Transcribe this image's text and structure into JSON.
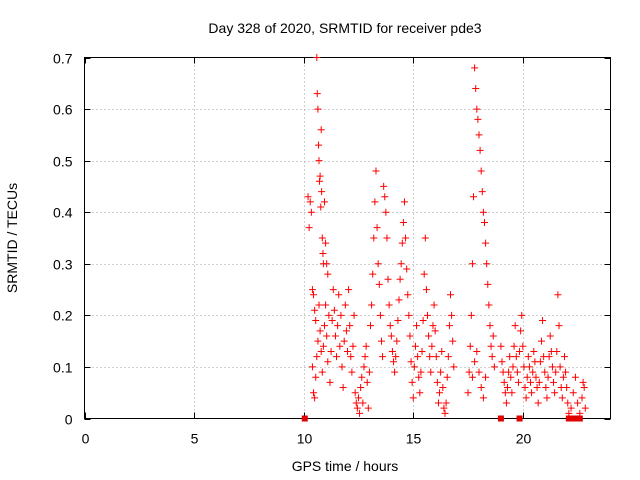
{
  "chart_data": {
    "type": "scatter",
    "title": "Day 328 of 2020, SRMTID for receiver pde3",
    "xlabel": "GPS time / hours",
    "ylabel": "SRMTID / TECUs",
    "xlim": [
      0,
      24
    ],
    "ylim": [
      0,
      0.7
    ],
    "xticks": [
      0,
      5,
      10,
      15,
      20
    ],
    "xtick_labels": [
      "0",
      "5",
      "10",
      "15",
      "20"
    ],
    "yticks": [
      0,
      0.1,
      0.2,
      0.3,
      0.4,
      0.5,
      0.6,
      0.7
    ],
    "ytick_labels": [
      "0",
      "0.1",
      "0.2",
      "0.3",
      "0.4",
      "0.5",
      "0.6",
      "0.7"
    ],
    "grid": true,
    "marker": "+",
    "marker_color": "#ff0000",
    "point_color": "#e00000",
    "series": [
      {
        "name": "SRMTID",
        "points": [
          [
            10.2,
            0.43
          ],
          [
            10.25,
            0.37
          ],
          [
            10.3,
            0.42
          ],
          [
            10.35,
            0.4
          ],
          [
            10.4,
            0.25
          ],
          [
            10.45,
            0.24
          ],
          [
            10.5,
            0.21
          ],
          [
            10.55,
            0.19
          ],
          [
            10.6,
            0.7
          ],
          [
            10.62,
            0.63
          ],
          [
            10.65,
            0.6
          ],
          [
            10.68,
            0.53
          ],
          [
            10.7,
            0.5
          ],
          [
            10.72,
            0.46
          ],
          [
            10.75,
            0.47
          ],
          [
            10.78,
            0.41
          ],
          [
            10.8,
            0.56
          ],
          [
            10.82,
            0.44
          ],
          [
            10.85,
            0.35
          ],
          [
            10.88,
            0.32
          ],
          [
            10.9,
            0.3
          ],
          [
            10.95,
            0.42
          ],
          [
            11.0,
            0.34
          ],
          [
            11.05,
            0.3
          ],
          [
            11.1,
            0.28
          ],
          [
            11.15,
            0.2
          ],
          [
            10.4,
            0.1
          ],
          [
            10.45,
            0.05
          ],
          [
            10.5,
            0.04
          ],
          [
            10.55,
            0.08
          ],
          [
            10.6,
            0.12
          ],
          [
            10.65,
            0.15
          ],
          [
            10.7,
            0.22
          ],
          [
            10.75,
            0.17
          ],
          [
            10.8,
            0.13
          ],
          [
            10.85,
            0.09
          ],
          [
            10.9,
            0.14
          ],
          [
            10.95,
            0.18
          ],
          [
            11.0,
            0.22
          ],
          [
            11.05,
            0.16
          ],
          [
            11.1,
            0.11
          ],
          [
            11.2,
            0.07
          ],
          [
            11.25,
            0.13
          ],
          [
            11.3,
            0.19
          ],
          [
            11.35,
            0.25
          ],
          [
            11.4,
            0.21
          ],
          [
            11.45,
            0.16
          ],
          [
            11.5,
            0.12
          ],
          [
            11.55,
            0.18
          ],
          [
            11.6,
            0.24
          ],
          [
            11.65,
            0.14
          ],
          [
            11.7,
            0.2
          ],
          [
            11.75,
            0.1
          ],
          [
            11.8,
            0.06
          ],
          [
            11.85,
            0.15
          ],
          [
            11.9,
            0.22
          ],
          [
            11.95,
            0.17
          ],
          [
            12.0,
            0.13
          ],
          [
            12.05,
            0.25
          ],
          [
            12.1,
            0.18
          ],
          [
            12.15,
            0.12
          ],
          [
            12.2,
            0.09
          ],
          [
            12.25,
            0.14
          ],
          [
            12.3,
            0.2
          ],
          [
            12.35,
            0.05
          ],
          [
            12.4,
            0.03
          ],
          [
            12.45,
            0.02
          ],
          [
            12.5,
            0.04
          ],
          [
            12.55,
            0.01
          ],
          [
            12.6,
            0.06
          ],
          [
            12.65,
            0.08
          ],
          [
            12.7,
            0.03
          ],
          [
            12.75,
            0.1
          ],
          [
            12.8,
            0.12
          ],
          [
            12.85,
            0.14
          ],
          [
            12.9,
            0.07
          ],
          [
            12.95,
            0.02
          ],
          [
            13.0,
            0.09
          ],
          [
            13.05,
            0.18
          ],
          [
            13.1,
            0.22
          ],
          [
            13.15,
            0.28
          ],
          [
            13.2,
            0.35
          ],
          [
            13.25,
            0.42
          ],
          [
            13.3,
            0.48
          ],
          [
            13.35,
            0.37
          ],
          [
            13.4,
            0.3
          ],
          [
            13.45,
            0.26
          ],
          [
            13.5,
            0.2
          ],
          [
            13.55,
            0.15
          ],
          [
            13.6,
            0.12
          ],
          [
            13.65,
            0.45
          ],
          [
            13.7,
            0.43
          ],
          [
            13.75,
            0.4
          ],
          [
            13.8,
            0.35
          ],
          [
            13.85,
            0.27
          ],
          [
            13.9,
            0.22
          ],
          [
            13.95,
            0.18
          ],
          [
            14.0,
            0.16
          ],
          [
            14.05,
            0.13
          ],
          [
            14.1,
            0.11
          ],
          [
            14.15,
            0.09
          ],
          [
            14.2,
            0.12
          ],
          [
            14.25,
            0.15
          ],
          [
            14.3,
            0.19
          ],
          [
            14.35,
            0.23
          ],
          [
            14.4,
            0.27
          ],
          [
            14.45,
            0.3
          ],
          [
            14.5,
            0.34
          ],
          [
            14.55,
            0.38
          ],
          [
            14.6,
            0.42
          ],
          [
            14.65,
            0.35
          ],
          [
            14.7,
            0.29
          ],
          [
            14.75,
            0.24
          ],
          [
            14.8,
            0.2
          ],
          [
            14.85,
            0.16
          ],
          [
            14.9,
            0.11
          ],
          [
            14.95,
            0.07
          ],
          [
            15.0,
            0.04
          ],
          [
            15.05,
            0.1
          ],
          [
            15.1,
            0.14
          ],
          [
            15.15,
            0.18
          ],
          [
            15.2,
            0.12
          ],
          [
            15.25,
            0.08
          ],
          [
            15.3,
            0.05
          ],
          [
            15.35,
            0.09
          ],
          [
            15.4,
            0.13
          ],
          [
            15.45,
            0.19
          ],
          [
            15.5,
            0.28
          ],
          [
            15.55,
            0.35
          ],
          [
            15.6,
            0.25
          ],
          [
            15.65,
            0.2
          ],
          [
            15.7,
            0.16
          ],
          [
            15.75,
            0.12
          ],
          [
            15.8,
            0.09
          ],
          [
            15.85,
            0.14
          ],
          [
            15.9,
            0.18
          ],
          [
            15.95,
            0.22
          ],
          [
            16.0,
            0.17
          ],
          [
            16.05,
            0.12
          ],
          [
            16.1,
            0.07
          ],
          [
            16.15,
            0.03
          ],
          [
            16.2,
            0.05
          ],
          [
            16.25,
            0.09
          ],
          [
            16.3,
            0.13
          ],
          [
            16.35,
            0.06
          ],
          [
            16.4,
            0.02
          ],
          [
            16.45,
            0.01
          ],
          [
            16.5,
            0.03
          ],
          [
            16.55,
            0.08
          ],
          [
            16.6,
            0.12
          ],
          [
            16.65,
            0.18
          ],
          [
            16.7,
            0.24
          ],
          [
            16.75,
            0.2
          ],
          [
            16.8,
            0.15
          ],
          [
            16.85,
            0.1
          ],
          [
            17.5,
            0.05
          ],
          [
            17.55,
            0.09
          ],
          [
            17.6,
            0.14
          ],
          [
            17.65,
            0.2
          ],
          [
            17.7,
            0.3
          ],
          [
            17.75,
            0.43
          ],
          [
            17.8,
            0.68
          ],
          [
            17.85,
            0.64
          ],
          [
            17.9,
            0.6
          ],
          [
            17.95,
            0.58
          ],
          [
            18.0,
            0.55
          ],
          [
            18.05,
            0.52
          ],
          [
            18.1,
            0.48
          ],
          [
            18.15,
            0.44
          ],
          [
            18.2,
            0.4
          ],
          [
            18.25,
            0.38
          ],
          [
            18.3,
            0.34
          ],
          [
            18.35,
            0.3
          ],
          [
            18.4,
            0.26
          ],
          [
            18.45,
            0.22
          ],
          [
            18.5,
            0.18
          ],
          [
            18.55,
            0.14
          ],
          [
            18.6,
            0.12
          ],
          [
            18.65,
            0.16
          ],
          [
            18.7,
            0.1
          ],
          [
            17.7,
            0.08
          ],
          [
            17.8,
            0.11
          ],
          [
            17.9,
            0.13
          ],
          [
            18.0,
            0.09
          ],
          [
            18.1,
            0.06
          ],
          [
            18.2,
            0.04
          ],
          [
            18.3,
            0.08
          ],
          [
            19.0,
            0.14
          ],
          [
            19.05,
            0.11
          ],
          [
            19.1,
            0.09
          ],
          [
            19.15,
            0.07
          ],
          [
            19.2,
            0.05
          ],
          [
            19.25,
            0.03
          ],
          [
            19.3,
            0.06
          ],
          [
            19.35,
            0.09
          ],
          [
            19.4,
            0.12
          ],
          [
            19.45,
            0.08
          ],
          [
            19.5,
            0.05
          ],
          [
            19.55,
            0.1
          ],
          [
            19.6,
            0.14
          ],
          [
            19.65,
            0.18
          ],
          [
            19.7,
            0.12
          ],
          [
            19.75,
            0.09
          ],
          [
            19.8,
            0.07
          ],
          [
            19.85,
            0.13
          ],
          [
            19.9,
            0.17
          ],
          [
            19.95,
            0.2
          ],
          [
            20.0,
            0.14
          ],
          [
            20.05,
            0.1
          ],
          [
            20.1,
            0.06
          ],
          [
            20.15,
            0.04
          ],
          [
            20.2,
            0.08
          ],
          [
            20.25,
            0.12
          ],
          [
            20.3,
            0.1
          ],
          [
            20.35,
            0.07
          ],
          [
            20.4,
            0.05
          ],
          [
            20.45,
            0.09
          ],
          [
            20.5,
            0.13
          ],
          [
            20.55,
            0.11
          ],
          [
            20.6,
            0.08
          ],
          [
            20.65,
            0.06
          ],
          [
            20.7,
            0.03
          ],
          [
            20.75,
            0.07
          ],
          [
            20.8,
            0.11
          ],
          [
            20.85,
            0.15
          ],
          [
            20.9,
            0.19
          ],
          [
            20.95,
            0.12
          ],
          [
            21.0,
            0.09
          ],
          [
            21.05,
            0.06
          ],
          [
            21.1,
            0.04
          ],
          [
            21.15,
            0.08
          ],
          [
            21.2,
            0.12
          ],
          [
            21.25,
            0.16
          ],
          [
            21.3,
            0.13
          ],
          [
            21.35,
            0.1
          ],
          [
            21.4,
            0.07
          ],
          [
            21.45,
            0.05
          ],
          [
            21.5,
            0.09
          ],
          [
            21.55,
            0.13
          ],
          [
            21.6,
            0.24
          ],
          [
            21.65,
            0.18
          ],
          [
            21.7,
            0.1
          ],
          [
            21.75,
            0.06
          ],
          [
            21.8,
            0.04
          ],
          [
            21.85,
            0.08
          ],
          [
            21.9,
            0.12
          ],
          [
            21.95,
            0.09
          ],
          [
            22.0,
            0.06
          ],
          [
            22.05,
            0.03
          ],
          [
            22.1,
            0.01
          ],
          [
            22.2,
            0.02
          ],
          [
            22.3,
            0.05
          ],
          [
            22.4,
            0.08
          ],
          [
            22.5,
            0.03
          ],
          [
            22.6,
            0.01
          ],
          [
            22.7,
            0.04
          ],
          [
            22.75,
            0.07
          ],
          [
            22.8,
            0.06
          ],
          [
            22.85,
            0.02
          ]
        ]
      }
    ],
    "zero_squares_x": [
      10.05,
      19.0,
      19.85,
      22.1,
      22.2,
      22.3,
      22.4,
      22.5,
      22.6
    ]
  }
}
